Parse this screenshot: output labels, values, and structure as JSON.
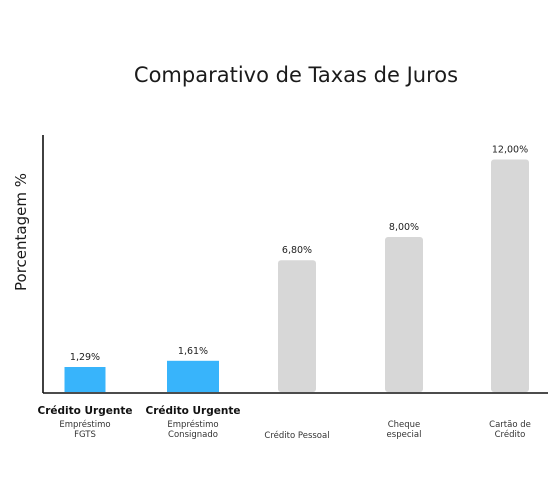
{
  "chart_data": {
    "type": "bar",
    "title": "Comparativo de Taxas de Juros",
    "ylabel": "Porcentagem %",
    "xlabel": "",
    "ylim": [
      0,
      12.9
    ],
    "grid": false,
    "categories": [
      {
        "brand": "Crédito Urgente",
        "lines": [
          "Empréstimo",
          "FGTS"
        ],
        "value": 1.29,
        "label": "1,29%",
        "highlight": true
      },
      {
        "brand": "Crédito Urgente",
        "lines": [
          "Empréstimo",
          "Consignado"
        ],
        "value": 1.61,
        "label": "1,61%",
        "highlight": true
      },
      {
        "brand": "",
        "lines": [
          "Crédito Pessoal"
        ],
        "value": 6.8,
        "label": "6,80%",
        "highlight": false
      },
      {
        "brand": "",
        "lines": [
          "Cheque",
          "especial"
        ],
        "value": 8.0,
        "label": "8,00%",
        "highlight": false
      },
      {
        "brand": "",
        "lines": [
          "Cartão de",
          "Crédito"
        ],
        "value": 12.0,
        "label": "12,00%",
        "highlight": false
      }
    ],
    "colors": {
      "highlight": "#38b4fb",
      "default": "#d7d7d7",
      "axis": "#111111"
    }
  }
}
